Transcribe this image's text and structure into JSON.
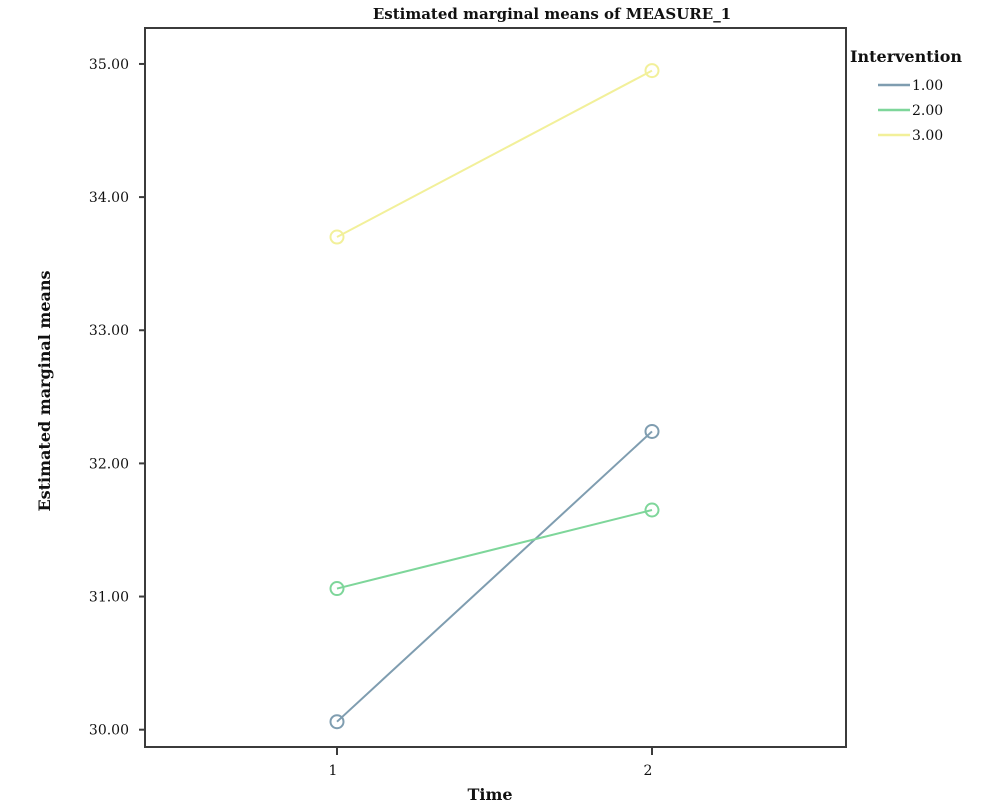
{
  "chart_data": {
    "type": "line",
    "title": "Estimated marginal means of MEASURE_1",
    "xlabel": "Time",
    "ylabel": "Estimated marginal means",
    "x": [
      "1",
      "2"
    ],
    "ylim": [
      29.87,
      35.27
    ],
    "yticks": [
      "30.00",
      "31.00",
      "32.00",
      "33.00",
      "34.00",
      "35.00"
    ],
    "grid": false,
    "legend": {
      "title": "Intervention",
      "placement": "top-right"
    },
    "series": [
      {
        "name": "1.00",
        "color": "#7f9db0",
        "values": [
          30.06,
          32.24
        ]
      },
      {
        "name": "2.00",
        "color": "#7ed69a",
        "values": [
          31.06,
          31.65
        ]
      },
      {
        "name": "3.00",
        "color": "#f2f09a",
        "values": [
          33.7,
          34.95
        ]
      }
    ],
    "marker": "open-circle"
  }
}
